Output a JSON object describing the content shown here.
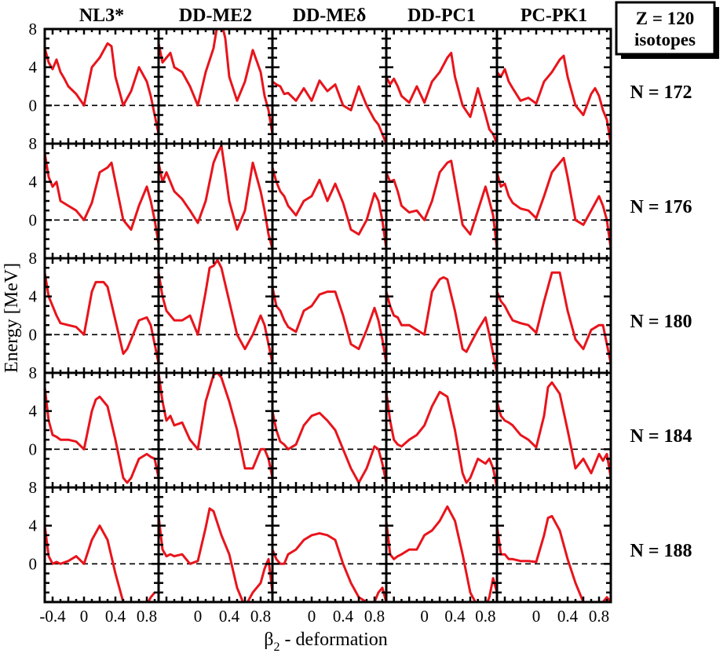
{
  "figure": {
    "z_label": "Z = 120",
    "isotopes_label": "isotopes",
    "ylabel": "Energy [MeV]",
    "xlabel_symbol": "β",
    "xlabel_subscript": "2",
    "xlabel_text": " - deformation",
    "colors": {
      "curve": "#e8141c",
      "axis": "#000000",
      "zero_line": "#000000"
    }
  },
  "chart_data": {
    "type": "line",
    "columns": [
      "NL3*",
      "DD-ME2",
      "DD-MEδ",
      "DD-PC1",
      "PC-PK1"
    ],
    "rows": [
      "N = 172",
      "N = 176",
      "N = 180",
      "N = 184",
      "N = 188"
    ],
    "xlim": [
      -0.5,
      0.95
    ],
    "ylim": [
      -4,
      8
    ],
    "x_ticks": [
      -0.4,
      0,
      0.4,
      0.8
    ],
    "y_ticks": [
      0,
      4,
      8
    ],
    "zero_line": "dashed",
    "panels": [
      [
        {
          "x": [
            -0.5,
            -0.45,
            -0.4,
            -0.35,
            -0.3,
            -0.25,
            -0.2,
            -0.1,
            0,
            0.1,
            0.2,
            0.3,
            0.35,
            0.4,
            0.5,
            0.6,
            0.7,
            0.8,
            0.85,
            0.9,
            0.95
          ],
          "y": [
            6,
            4.5,
            3.8,
            4.8,
            3.5,
            2.8,
            2,
            1.2,
            0,
            4,
            5,
            6.5,
            6.2,
            3,
            0,
            1.5,
            4,
            2.5,
            1,
            -1,
            -3
          ]
        },
        {
          "x": [
            -0.5,
            -0.45,
            -0.4,
            -0.35,
            -0.3,
            -0.2,
            -0.1,
            0,
            0.1,
            0.2,
            0.25,
            0.3,
            0.35,
            0.4,
            0.5,
            0.6,
            0.7,
            0.8,
            0.85,
            0.9,
            0.95
          ],
          "y": [
            6.5,
            4.5,
            5,
            5.5,
            4,
            3.5,
            2,
            0,
            3.5,
            6,
            8.5,
            8.8,
            7,
            3,
            0.5,
            2.5,
            5.8,
            3.5,
            1,
            -0.5,
            -3
          ]
        },
        {
          "x": [
            -0.5,
            -0.45,
            -0.4,
            -0.35,
            -0.3,
            -0.2,
            -0.1,
            0,
            0.1,
            0.2,
            0.3,
            0.4,
            0.5,
            0.6,
            0.7,
            0.8,
            0.85,
            0.9,
            0.95
          ],
          "y": [
            2.5,
            2.2,
            2,
            1.2,
            1.3,
            0.5,
            1.8,
            0.5,
            2.6,
            1.5,
            2.2,
            0,
            -0.5,
            2,
            0,
            -1.5,
            -2,
            -3,
            -4
          ]
        },
        {
          "x": [
            -0.5,
            -0.45,
            -0.4,
            -0.35,
            -0.3,
            -0.2,
            -0.1,
            0,
            0.1,
            0.2,
            0.3,
            0.35,
            0.4,
            0.5,
            0.6,
            0.7,
            0.8,
            0.85,
            0.9,
            0.95
          ],
          "y": [
            3,
            2.2,
            2.8,
            2,
            1,
            0.3,
            2,
            0.3,
            2.5,
            3.5,
            5,
            5.5,
            3,
            0,
            -1.2,
            1.8,
            -1,
            -2.5,
            -3,
            -4
          ]
        },
        {
          "x": [
            -0.5,
            -0.45,
            -0.4,
            -0.35,
            -0.3,
            -0.2,
            -0.1,
            0,
            0.1,
            0.2,
            0.3,
            0.35,
            0.4,
            0.5,
            0.6,
            0.7,
            0.75,
            0.8,
            0.85,
            0.9,
            0.95
          ],
          "y": [
            3.5,
            3,
            3.8,
            2.5,
            1.8,
            0.5,
            0.8,
            0.2,
            2.5,
            3.5,
            4.8,
            5.2,
            3,
            0,
            -1,
            1.2,
            1.8,
            1,
            -0.5,
            -1.5,
            -4
          ]
        }
      ],
      [
        {
          "x": [
            -0.5,
            -0.45,
            -0.4,
            -0.35,
            -0.3,
            -0.2,
            -0.1,
            0,
            0.1,
            0.2,
            0.3,
            0.35,
            0.4,
            0.5,
            0.6,
            0.7,
            0.8,
            0.85,
            0.9,
            0.95
          ],
          "y": [
            7,
            4.5,
            3.5,
            4,
            2,
            1.5,
            1,
            0,
            1.8,
            5,
            5.5,
            6,
            4,
            0,
            -1,
            1.5,
            3.5,
            2,
            0,
            -2.5
          ]
        },
        {
          "x": [
            -0.5,
            -0.45,
            -0.4,
            -0.35,
            -0.3,
            -0.2,
            -0.1,
            0,
            0.1,
            0.2,
            0.25,
            0.3,
            0.35,
            0.4,
            0.5,
            0.6,
            0.7,
            0.8,
            0.85,
            0.9,
            0.95
          ],
          "y": [
            6,
            4,
            5,
            4,
            3,
            2.2,
            1,
            -0.3,
            2,
            6,
            7,
            7.8,
            5,
            2,
            -1,
            1,
            6,
            3,
            1,
            -1.5,
            -3
          ]
        },
        {
          "x": [
            -0.5,
            -0.45,
            -0.4,
            -0.35,
            -0.3,
            -0.2,
            -0.1,
            0,
            0.1,
            0.2,
            0.3,
            0.4,
            0.5,
            0.6,
            0.7,
            0.8,
            0.85,
            0.9,
            0.95
          ],
          "y": [
            5.5,
            4,
            3,
            2.5,
            1.5,
            0.5,
            2,
            2.5,
            4.2,
            2,
            3.8,
            1.8,
            -1,
            -1.5,
            0,
            2.8,
            2,
            0,
            -3
          ]
        },
        {
          "x": [
            -0.5,
            -0.45,
            -0.4,
            -0.35,
            -0.3,
            -0.2,
            -0.1,
            0,
            0.1,
            0.2,
            0.3,
            0.35,
            0.4,
            0.5,
            0.6,
            0.7,
            0.8,
            0.85,
            0.9,
            0.95
          ],
          "y": [
            5,
            4,
            4.2,
            3,
            1.5,
            0.8,
            1,
            0,
            2,
            5,
            6,
            6.2,
            4,
            -0.5,
            -1.5,
            1,
            3.5,
            2,
            0.5,
            -3
          ]
        },
        {
          "x": [
            -0.5,
            -0.45,
            -0.4,
            -0.35,
            -0.3,
            -0.2,
            -0.1,
            0,
            0.1,
            0.2,
            0.3,
            0.35,
            0.4,
            0.5,
            0.6,
            0.7,
            0.8,
            0.85,
            0.9,
            0.95
          ],
          "y": [
            5,
            3.5,
            3.8,
            2.5,
            1.8,
            1.2,
            1,
            0.2,
            2.5,
            5,
            6,
            6.5,
            4.5,
            0,
            -0.5,
            1,
            2.5,
            1.5,
            0,
            -3
          ]
        }
      ],
      [
        {
          "x": [
            -0.5,
            -0.45,
            -0.4,
            -0.35,
            -0.3,
            -0.2,
            -0.1,
            0,
            0.1,
            0.15,
            0.2,
            0.25,
            0.3,
            0.4,
            0.5,
            0.55,
            0.6,
            0.7,
            0.8,
            0.85,
            0.9,
            0.95
          ],
          "y": [
            6.5,
            4,
            3,
            2,
            1.2,
            1,
            0.8,
            0,
            4.5,
            5.5,
            5.5,
            5.5,
            5,
            1.5,
            -2,
            -1.5,
            -0.5,
            1.5,
            1.8,
            1,
            -1,
            -3
          ]
        },
        {
          "x": [
            -0.5,
            -0.45,
            -0.4,
            -0.35,
            -0.3,
            -0.2,
            -0.1,
            0,
            0.1,
            0.15,
            0.2,
            0.25,
            0.3,
            0.4,
            0.5,
            0.6,
            0.7,
            0.8,
            0.85,
            0.9,
            0.95
          ],
          "y": [
            6.5,
            4,
            2.5,
            2,
            1.5,
            1.5,
            2,
            0,
            4.5,
            7,
            7.2,
            7.8,
            7,
            3.5,
            0,
            -1.5,
            0,
            2,
            1,
            -1,
            -3
          ]
        },
        {
          "x": [
            -0.5,
            -0.45,
            -0.4,
            -0.35,
            -0.3,
            -0.2,
            -0.1,
            0,
            0.1,
            0.2,
            0.3,
            0.4,
            0.5,
            0.6,
            0.7,
            0.8,
            0.85,
            0.9,
            0.95
          ],
          "y": [
            5,
            3,
            2.5,
            1.5,
            0.8,
            0.3,
            2.5,
            3,
            4.2,
            4.5,
            4.5,
            2,
            -1,
            -1.5,
            0.5,
            2.8,
            1.5,
            -0.5,
            -3
          ]
        },
        {
          "x": [
            -0.5,
            -0.45,
            -0.4,
            -0.35,
            -0.3,
            -0.2,
            -0.1,
            0,
            0.1,
            0.2,
            0.25,
            0.3,
            0.4,
            0.5,
            0.55,
            0.6,
            0.7,
            0.8,
            0.85,
            0.9,
            0.95
          ],
          "y": [
            4.5,
            3,
            2,
            1.8,
            1,
            1,
            0.5,
            0,
            4.5,
            5.8,
            6,
            5.8,
            2.5,
            -1.5,
            -1.8,
            -1,
            0.5,
            1.8,
            0,
            -2,
            -4
          ]
        },
        {
          "x": [
            -0.5,
            -0.45,
            -0.4,
            -0.35,
            -0.3,
            -0.2,
            -0.1,
            0,
            0.1,
            0.2,
            0.25,
            0.3,
            0.4,
            0.5,
            0.6,
            0.7,
            0.8,
            0.85,
            0.9,
            0.95
          ],
          "y": [
            4.5,
            3.5,
            3,
            2.2,
            1.5,
            1.2,
            1,
            0.2,
            3.5,
            6.5,
            6.5,
            6.5,
            2.5,
            -0.5,
            -1.5,
            0.5,
            1,
            1,
            -1,
            -3
          ]
        }
      ],
      [
        {
          "x": [
            -0.5,
            -0.45,
            -0.4,
            -0.35,
            -0.3,
            -0.2,
            -0.1,
            0,
            0.1,
            0.15,
            0.2,
            0.3,
            0.4,
            0.5,
            0.55,
            0.6,
            0.7,
            0.8,
            0.85,
            0.9,
            0.95
          ],
          "y": [
            6.5,
            3,
            1.5,
            1.3,
            1,
            1,
            0.8,
            0,
            4,
            5.2,
            5.5,
            4.5,
            1,
            -3,
            -3.5,
            -3,
            -1,
            -0.5,
            -0.8,
            -1,
            -3
          ]
        },
        {
          "x": [
            -0.5,
            -0.45,
            -0.4,
            -0.35,
            -0.3,
            -0.2,
            -0.1,
            0,
            0.1,
            0.2,
            0.25,
            0.3,
            0.4,
            0.5,
            0.6,
            0.7,
            0.8,
            0.85,
            0.9,
            0.95
          ],
          "y": [
            8,
            5,
            3,
            3.5,
            2.5,
            2.8,
            1,
            0,
            5,
            7.8,
            8,
            7.5,
            5,
            2,
            -2,
            -2,
            0,
            0,
            -1,
            -3
          ]
        },
        {
          "x": [
            -0.5,
            -0.45,
            -0.4,
            -0.35,
            -0.3,
            -0.2,
            -0.1,
            0,
            0.1,
            0.2,
            0.3,
            0.4,
            0.5,
            0.6,
            0.7,
            0.8,
            0.85,
            0.9,
            0.95
          ],
          "y": [
            4,
            2,
            0.8,
            0.5,
            0,
            0.5,
            2.5,
            3.5,
            3.8,
            3,
            2,
            0,
            -2,
            -3.5,
            -2,
            0.3,
            0,
            -1.5,
            -3.5
          ]
        },
        {
          "x": [
            -0.5,
            -0.45,
            -0.4,
            -0.35,
            -0.3,
            -0.2,
            -0.1,
            0,
            0.1,
            0.2,
            0.3,
            0.4,
            0.5,
            0.55,
            0.6,
            0.7,
            0.8,
            0.85,
            0.9,
            0.95
          ],
          "y": [
            6,
            3,
            1,
            0.5,
            0.3,
            1,
            1.5,
            2.5,
            4.5,
            6,
            5.5,
            2,
            -2.5,
            -3.5,
            -3,
            -1,
            -1.5,
            -1,
            -2,
            -4
          ]
        },
        {
          "x": [
            -0.5,
            -0.45,
            -0.4,
            -0.35,
            -0.3,
            -0.2,
            -0.1,
            0,
            0.1,
            0.15,
            0.2,
            0.3,
            0.4,
            0.5,
            0.6,
            0.7,
            0.8,
            0.85,
            0.9,
            0.95
          ],
          "y": [
            5,
            3.5,
            3,
            2.8,
            2.5,
            1.5,
            1,
            0.2,
            3.5,
            6.5,
            7,
            5.8,
            2,
            -2,
            -1,
            -2.5,
            -0.5,
            -1.2,
            -0.5,
            -3
          ]
        }
      ],
      [
        {
          "x": [
            -0.5,
            -0.45,
            -0.4,
            -0.35,
            -0.3,
            -0.2,
            -0.1,
            0,
            0.1,
            0.2,
            0.3,
            0.4,
            0.5,
            0.6,
            0.7,
            0.8,
            0.85,
            0.9
          ],
          "y": [
            4,
            0.8,
            0,
            0.2,
            0,
            0.3,
            0.8,
            0,
            2.5,
            4,
            2.5,
            -1,
            -4,
            -4.5,
            -4.5,
            -4.3,
            -3.5,
            -3
          ]
        },
        {
          "x": [
            -0.5,
            -0.45,
            -0.4,
            -0.35,
            -0.3,
            -0.2,
            -0.1,
            0,
            0.1,
            0.15,
            0.2,
            0.3,
            0.4,
            0.5,
            0.6,
            0.7,
            0.8,
            0.85,
            0.9,
            0.95
          ],
          "y": [
            5,
            1.5,
            0.8,
            1,
            0.8,
            1,
            0,
            0.3,
            3.8,
            5.8,
            5.5,
            3,
            1,
            -2.5,
            -4.5,
            -3,
            -2,
            -0.5,
            0.5,
            -3
          ]
        },
        {
          "x": [
            -0.5,
            -0.45,
            -0.4,
            -0.35,
            -0.3,
            -0.2,
            -0.1,
            0,
            0.1,
            0.2,
            0.3,
            0.4,
            0.5,
            0.6,
            0.7,
            0.8,
            0.85,
            0.9,
            0.95
          ],
          "y": [
            1.5,
            0.5,
            0,
            0,
            1,
            1.5,
            2.5,
            3,
            3.2,
            3,
            2.5,
            0,
            -2,
            -3.5,
            -4,
            -4,
            -3,
            -2.5,
            -4
          ]
        },
        {
          "x": [
            -0.5,
            -0.45,
            -0.4,
            -0.35,
            -0.3,
            -0.2,
            -0.1,
            0,
            0.1,
            0.2,
            0.3,
            0.4,
            0.5,
            0.6,
            0.7,
            0.8,
            0.85,
            0.9,
            0.95
          ],
          "y": [
            4.5,
            1,
            0.5,
            0.8,
            1,
            1.5,
            1.5,
            3,
            3.5,
            4.5,
            6,
            4.5,
            1,
            -3,
            -4.5,
            -4.5,
            -3.5,
            -1.5,
            -3
          ]
        },
        {
          "x": [
            -0.5,
            -0.45,
            -0.4,
            -0.35,
            -0.3,
            -0.2,
            -0.1,
            0,
            0.1,
            0.15,
            0.2,
            0.3,
            0.4,
            0.5,
            0.6,
            0.7,
            0.8,
            0.85,
            0.9,
            0.95
          ],
          "y": [
            4,
            1,
            1,
            0.5,
            0.5,
            0.3,
            0.3,
            0.2,
            3,
            4.8,
            5,
            3.5,
            0.5,
            -2,
            -4,
            -4.5,
            -4.3,
            -4,
            -3.5,
            -4
          ]
        }
      ]
    ]
  }
}
